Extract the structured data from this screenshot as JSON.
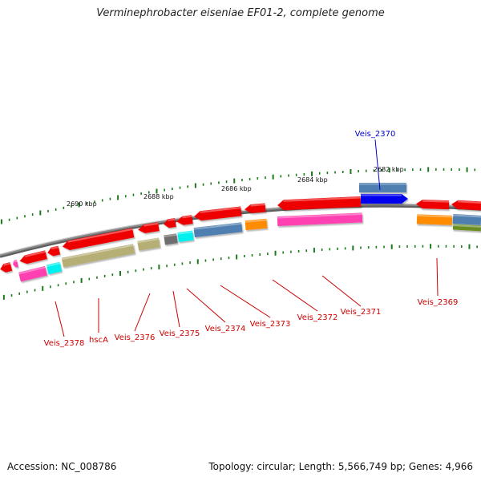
{
  "title": "Verminephrobacter eiseniae EF01-2, complete genome",
  "footer": {
    "accession": "Accession: NC_008786",
    "topology": "Topology: circular; Length: 5,566,749 bp; Genes: 4,966"
  },
  "colors": {
    "label_red": "#cc0000",
    "label_blue": "#0000cc",
    "backbone": "#8a8a8a",
    "tick_green": "#1a7a1a",
    "gene_red": "#ee0000",
    "gene_pink": "#ff3fb0",
    "gene_olive": "#b5ae74",
    "gene_steel": "#4f7fb0",
    "gene_orange": "#ff8c00",
    "gene_cyan": "#00f0f0",
    "gene_gray": "#6e6e6e",
    "gene_blue": "#0000ee",
    "gene_green": "#6b8e23"
  },
  "scale_labels": [
    "2690 kbp",
    "2688 kbp",
    "2686 kbp",
    "2684 kbp",
    "2682 kbp"
  ],
  "gene_labels": [
    {
      "text": "Veis_2378",
      "color": "red"
    },
    {
      "text": "hscA",
      "color": "red"
    },
    {
      "text": "Veis_2376",
      "color": "red"
    },
    {
      "text": "Veis_2375",
      "color": "red"
    },
    {
      "text": "Veis_2374",
      "color": "red"
    },
    {
      "text": "Veis_2373",
      "color": "red"
    },
    {
      "text": "Veis_2372",
      "color": "red"
    },
    {
      "text": "Veis_2371",
      "color": "red"
    },
    {
      "text": "Veis_2369",
      "color": "red"
    },
    {
      "text": "Veis_2370",
      "color": "blue"
    }
  ]
}
